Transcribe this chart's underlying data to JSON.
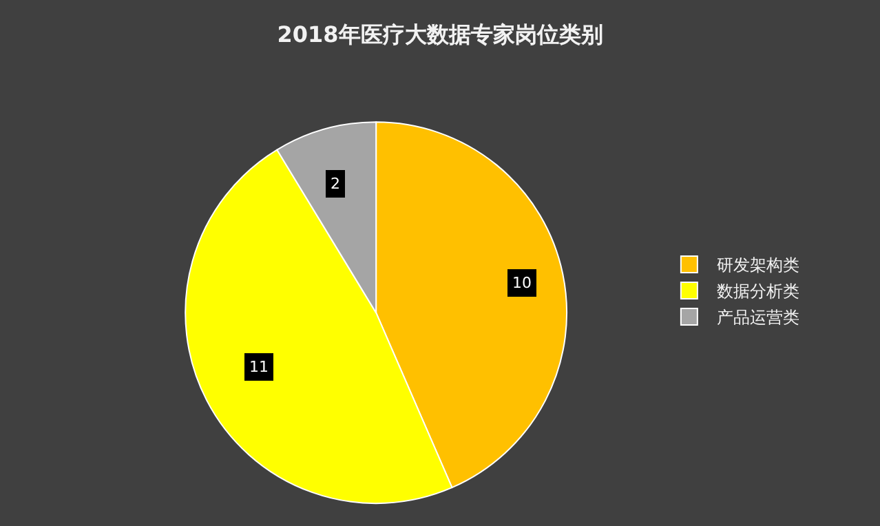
{
  "chart_data": {
    "type": "pie",
    "title": "2018年医疗大数据专家岗位类别",
    "categories": [
      "研发架构类",
      "数据分析类",
      "产品运营类"
    ],
    "values": [
      10,
      11,
      2
    ],
    "colors": [
      "#ffc000",
      "#ffff00",
      "#a5a5a5"
    ],
    "data_labels": true,
    "legend": "right"
  }
}
